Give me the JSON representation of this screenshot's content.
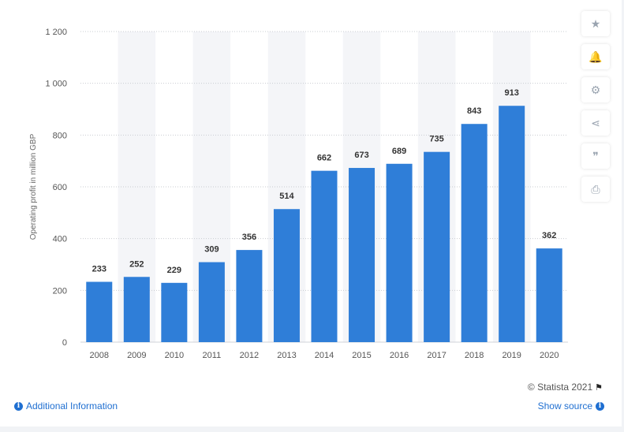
{
  "chart_data": {
    "type": "bar",
    "categories": [
      "2008",
      "2009",
      "2010",
      "2011",
      "2012",
      "2013",
      "2014",
      "2015",
      "2016",
      "2017",
      "2018",
      "2019",
      "2020"
    ],
    "values": [
      233,
      252,
      229,
      309,
      356,
      514,
      662,
      673,
      689,
      735,
      843,
      913,
      362
    ],
    "value_labels": [
      "233",
      "252",
      "229",
      "309",
      "356",
      "514",
      "662",
      "673",
      "689",
      "735",
      "843",
      "913",
      "362"
    ],
    "yticks": [
      0,
      200,
      400,
      600,
      800,
      1000,
      1200
    ],
    "ytick_labels": [
      "0",
      "200",
      "400",
      "600",
      "800",
      "1 000",
      "1 200"
    ],
    "ylim": [
      0,
      1200
    ],
    "ylabel": "Operating profit in million GBP",
    "xlabel": "",
    "title": "",
    "grid": true,
    "bar_color": "#2f7ed8",
    "band_color": "#f4f5f8"
  },
  "toolbar": {
    "buttons": [
      {
        "name": "favorite-button",
        "icon": "star-icon",
        "glyph": "★"
      },
      {
        "name": "notification-button",
        "icon": "bell-icon",
        "glyph": "🔔"
      },
      {
        "name": "settings-button",
        "icon": "gear-icon",
        "glyph": "⚙"
      },
      {
        "name": "share-button",
        "icon": "share-icon",
        "glyph": "⋖"
      },
      {
        "name": "cite-button",
        "icon": "quote-icon",
        "glyph": "❞"
      },
      {
        "name": "print-button",
        "icon": "print-icon",
        "glyph": "⎙"
      }
    ]
  },
  "footer": {
    "credit": "© Statista 2021",
    "additional_info": "Additional Information",
    "show_source": "Show source"
  }
}
